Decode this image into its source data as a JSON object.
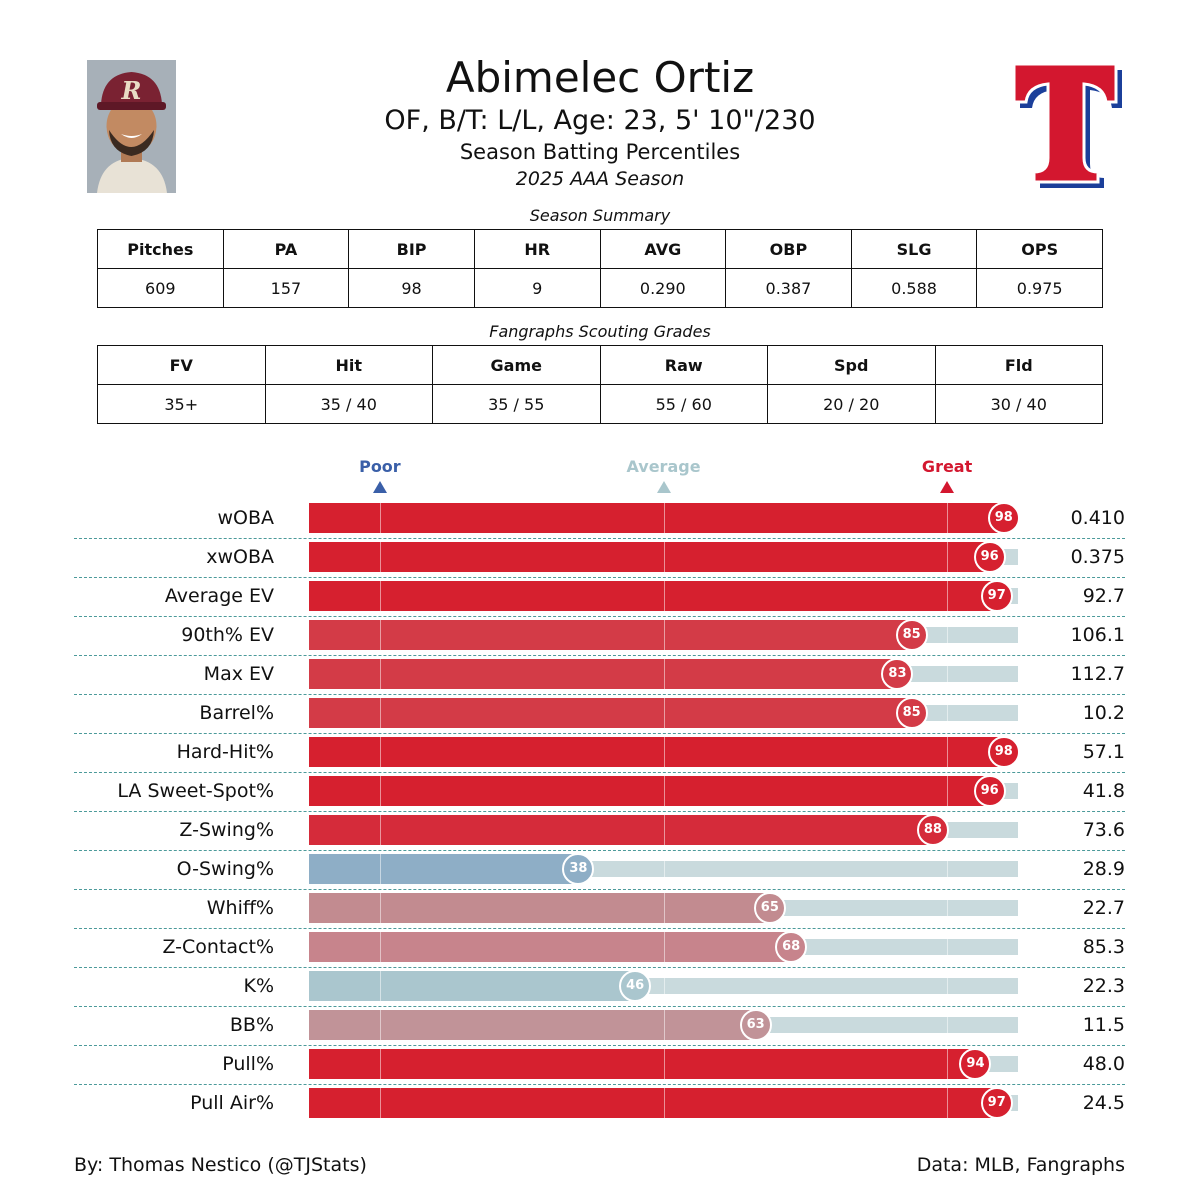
{
  "header": {
    "name": "Abimelec Ortiz",
    "bio": "OF, B/T: L/L, Age: 23, 5' 10\"/230",
    "subtitle": "Season Batting Percentiles",
    "season": "2025 AAA Season"
  },
  "photo": {
    "icon": "player-headshot",
    "cap_letter": "R"
  },
  "logo": {
    "icon": "texas-rangers-t-logo",
    "letter": "T",
    "colors": {
      "red": "#d3172f",
      "blue": "#1b3f9a"
    }
  },
  "season_summary": {
    "caption": "Season Summary",
    "headers": [
      "Pitches",
      "PA",
      "BIP",
      "HR",
      "AVG",
      "OBP",
      "SLG",
      "OPS"
    ],
    "values": [
      "609",
      "157",
      "98",
      "9",
      "0.290",
      "0.387",
      "0.588",
      "0.975"
    ]
  },
  "scouting": {
    "caption": "Fangraphs Scouting Grades",
    "headers": [
      "FV",
      "Hit",
      "Game",
      "Raw",
      "Spd",
      "Fld"
    ],
    "values": [
      "35+",
      "35 / 40",
      "35 / 55",
      "55 / 60",
      "20 / 20",
      "30 / 40"
    ]
  },
  "chart_data": {
    "type": "bar",
    "orientation": "horizontal",
    "x_range": [
      0,
      100
    ],
    "markers": [
      {
        "label": "Poor",
        "at": 10,
        "color": "#3a5fa8"
      },
      {
        "label": "Average",
        "at": 50,
        "color": "#a9c6cc"
      },
      {
        "label": "Great",
        "at": 90,
        "color": "#d3172f"
      }
    ],
    "categories": [
      "wOBA",
      "xwOBA",
      "Average EV",
      "90th% EV",
      "Max EV",
      "Barrel%",
      "Hard-Hit%",
      "LA Sweet-Spot%",
      "Z-Swing%",
      "O-Swing%",
      "Whiff%",
      "Z-Contact%",
      "K%",
      "BB%",
      "Pull%",
      "Pull Air%"
    ],
    "percentiles": [
      98,
      96,
      97,
      85,
      83,
      85,
      98,
      96,
      88,
      38,
      65,
      68,
      46,
      63,
      94,
      97
    ],
    "stat_values": [
      "0.410",
      "0.375",
      "92.7",
      "106.1",
      "112.7",
      "10.2",
      "57.1",
      "41.8",
      "73.6",
      "28.9",
      "22.7",
      "85.3",
      "22.3",
      "11.5",
      "48.0",
      "24.5"
    ],
    "colors": [
      "#d6202f",
      "#d6202f",
      "#d6202f",
      "#d33b47",
      "#d33b47",
      "#d33b47",
      "#d6202f",
      "#d6202f",
      "#d52b3a",
      "#8eaec6",
      "#c28b90",
      "#c7848c",
      "#aac6ce",
      "#c19398",
      "#d6202f",
      "#d6202f"
    ]
  },
  "footer": {
    "credit": "By: Thomas Nestico (@TJStats)",
    "source": "Data: MLB, Fangraphs"
  }
}
